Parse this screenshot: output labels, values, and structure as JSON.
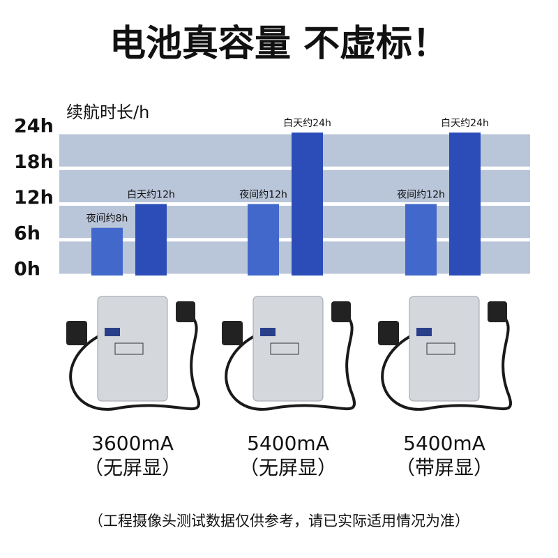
{
  "chart_data": {
    "type": "bar",
    "title": "电池真容量 不虚标！",
    "y_label": "续航时长/h",
    "categories": [
      "3600mA",
      "5400mA",
      "5400mA"
    ],
    "category_notes": [
      "（无屏显）",
      "（无屏显）",
      "（带屏显）"
    ],
    "series": [
      {
        "color": "#4268cc",
        "values": [
          8,
          12,
          12
        ],
        "value_labels": [
          "夜间约8h",
          "夜间约12h",
          "夜间约12h"
        ]
      },
      {
        "color": "#2c4cb8",
        "values": [
          12,
          24,
          24
        ],
        "value_labels": [
          "白天约12h",
          "白天约24h",
          "白天约24h"
        ]
      }
    ],
    "ylim": [
      0,
      24
    ],
    "yticks": [
      {
        "value": 0,
        "label": "0h"
      },
      {
        "value": 6,
        "label": "6h"
      },
      {
        "value": 12,
        "label": "12h"
      },
      {
        "value": 18,
        "label": "18h"
      },
      {
        "value": 24,
        "label": "24h"
      }
    ],
    "grid": true,
    "footnote": "（工程摄像头测试数据仅供参考，请已实际适用情况为准）"
  }
}
